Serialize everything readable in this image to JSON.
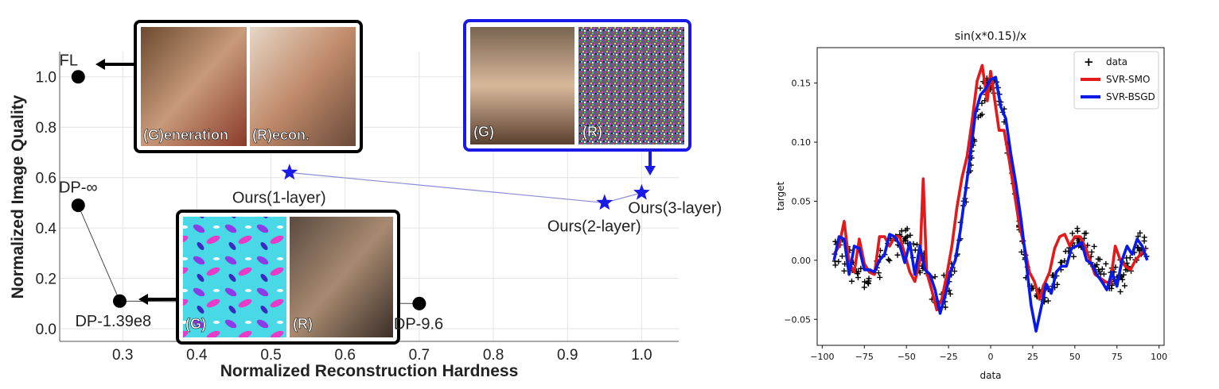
{
  "chart_data": [
    {
      "type": "scatter",
      "title": "",
      "xlabel": "Normalized Reconstruction Hardness",
      "ylabel": "Normalized Image Quality",
      "xlim": [
        0.215,
        1.05
      ],
      "ylim": [
        -0.05,
        1.1
      ],
      "xticks": [
        "0.3",
        "0.4",
        "0.5",
        "0.6",
        "0.7",
        "0.8",
        "0.9",
        "1.0"
      ],
      "yticks": [
        "0.0",
        "0.2",
        "0.4",
        "0.6",
        "0.8",
        "1.0"
      ],
      "grid": true,
      "series": [
        {
          "marker": "circle",
          "color": "#000000",
          "points": [
            {
              "label": "FL",
              "x": 0.24,
              "y": 1.0
            },
            {
              "label": "DP-∞",
              "x": 0.24,
              "y": 0.49
            },
            {
              "label": "DP-1.39e8",
              "x": 0.296,
              "y": 0.11
            },
            {
              "label": "DP-9.6",
              "x": 0.7,
              "y": 0.1
            }
          ]
        },
        {
          "marker": "star",
          "color": "#1a1ae6",
          "points": [
            {
              "label": "Ours(1-layer)",
              "x": 0.525,
              "y": 0.62
            },
            {
              "label": "Ours(2-layer)",
              "x": 0.95,
              "y": 0.5
            },
            {
              "label": "Ours(3-layer)",
              "x": 1.0,
              "y": 0.54
            }
          ]
        }
      ],
      "insets": [
        {
          "frame_color": "#000000",
          "captions": [
            "(G)eneration",
            "(R)econ."
          ]
        },
        {
          "frame_color": "#1a1ae6",
          "captions": [
            "(G)",
            "(R)"
          ]
        },
        {
          "frame_color": "#000000",
          "captions": [
            "(G)",
            "(R)"
          ]
        }
      ]
    },
    {
      "type": "line",
      "title": "sin(x*0.15)/x",
      "xlabel": "data",
      "ylabel": "target",
      "xlim": [
        -103,
        103
      ],
      "ylim": [
        -0.072,
        0.18
      ],
      "xticks": [
        "−100",
        "−75",
        "−50",
        "−25",
        "0",
        "25",
        "50",
        "75",
        "100"
      ],
      "yticks": [
        "−0.05",
        "0.00",
        "0.05",
        "0.10",
        "0.15"
      ],
      "legend": "top-right",
      "legend_entries": [
        "data",
        "SVR-SMO",
        "SVR-BSGD"
      ],
      "series": [
        {
          "name": "data",
          "marker": "plus",
          "color": "#000000",
          "function": "sin(x*0.15)/x + noise",
          "x_range": [
            -93,
            93
          ]
        },
        {
          "name": "SVR-SMO",
          "color": "#e31a1c",
          "x": [
            -93,
            -90,
            -87,
            -84,
            -81,
            -78,
            -75,
            -72,
            -69,
            -66,
            -63,
            -60,
            -57,
            -54,
            -51,
            -48,
            -45,
            -42,
            -40,
            -38,
            -35,
            -32,
            -29,
            -26,
            -23,
            -20,
            -17,
            -14,
            -11,
            -8,
            -5,
            -2,
            0,
            2,
            5,
            8,
            11,
            14,
            17,
            20,
            23,
            26,
            29,
            32,
            35,
            38,
            41,
            44,
            47,
            50,
            53,
            56,
            59,
            62,
            65,
            68,
            71,
            74,
            77,
            80,
            83,
            86,
            89,
            92
          ],
          "y": [
            0.005,
            0.012,
            0.033,
            -0.002,
            -0.01,
            0.018,
            -0.003,
            -0.01,
            -0.012,
            0.02,
            0.02,
            0.012,
            0.02,
            0.02,
            0.005,
            -0.01,
            -0.018,
            0.0,
            0.069,
            -0.01,
            -0.025,
            -0.042,
            -0.033,
            -0.012,
            0.012,
            0.045,
            0.07,
            0.088,
            0.118,
            0.152,
            0.165,
            0.135,
            0.16,
            0.14,
            0.11,
            0.11,
            0.085,
            0.058,
            0.03,
            0.012,
            -0.01,
            -0.018,
            -0.033,
            -0.02,
            -0.01,
            0.01,
            0.02,
            0.022,
            0.012,
            0.02,
            0.02,
            0.012,
            0.0,
            -0.012,
            -0.015,
            -0.018,
            -0.02,
            0.012,
            0.0,
            -0.005,
            -0.008,
            0.0,
            0.005,
            0.01
          ]
        },
        {
          "name": "SVR-BSGD",
          "color": "#0a1ae6",
          "x": [
            -93,
            -90,
            -87,
            -84,
            -81,
            -78,
            -75,
            -72,
            -69,
            -66,
            -63,
            -60,
            -57,
            -54,
            -51,
            -48,
            -45,
            -42,
            -39,
            -36,
            -33,
            -30,
            -27,
            -24,
            -21,
            -18,
            -15,
            -12,
            -9,
            -6,
            -3,
            0,
            3,
            6,
            9,
            12,
            15,
            18,
            21,
            24,
            27,
            30,
            33,
            36,
            39,
            42,
            45,
            48,
            51,
            54,
            57,
            60,
            63,
            66,
            69,
            72,
            75,
            78,
            81,
            84,
            87,
            90,
            93
          ],
          "y": [
            0.0,
            0.02,
            0.018,
            -0.012,
            0.012,
            0.01,
            -0.008,
            -0.008,
            -0.01,
            0.0,
            0.005,
            0.022,
            0.02,
            0.013,
            -0.002,
            0.015,
            -0.012,
            0.012,
            -0.008,
            -0.012,
            -0.025,
            -0.045,
            -0.03,
            -0.01,
            0.0,
            0.025,
            0.058,
            0.09,
            0.125,
            0.14,
            0.145,
            0.153,
            0.155,
            0.13,
            0.12,
            0.09,
            0.065,
            0.035,
            0.0,
            -0.038,
            -0.06,
            -0.04,
            -0.02,
            -0.028,
            -0.01,
            -0.005,
            -0.005,
            0.01,
            0.012,
            0.015,
            0.0,
            -0.003,
            -0.012,
            -0.018,
            -0.025,
            -0.01,
            -0.022,
            0.0,
            0.012,
            0.005,
            0.018,
            0.012,
            0.0
          ]
        }
      ]
    }
  ]
}
